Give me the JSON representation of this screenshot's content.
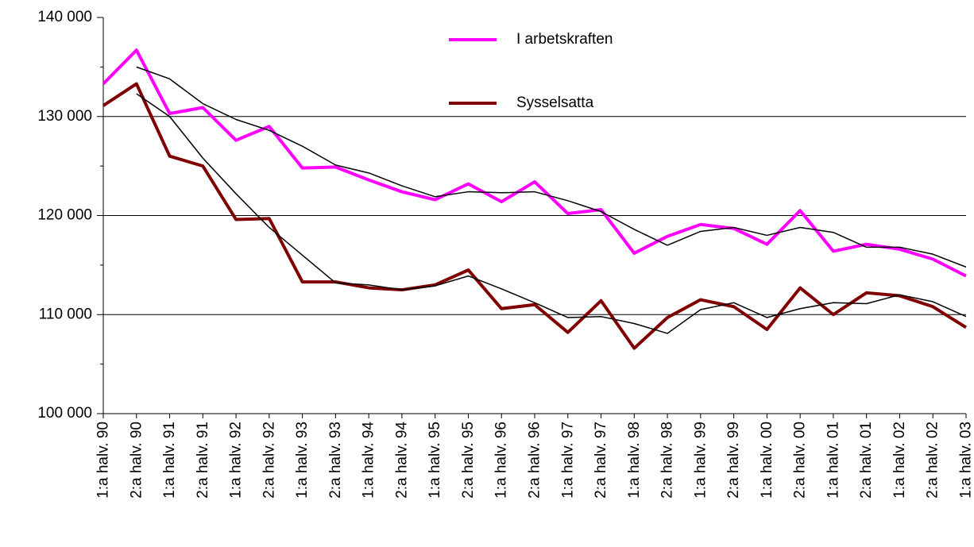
{
  "chart_data": {
    "type": "line",
    "categories": [
      "1:a halv. 90",
      "2:a halv. 90",
      "1:a halv. 91",
      "2:a halv. 91",
      "1:a halv. 92",
      "2:a halv. 92",
      "1:a halv. 93",
      "2:a halv. 93",
      "1:a halv. 94",
      "2:a halv. 94",
      "1:a halv. 95",
      "2:a halv. 95",
      "1:a halv. 96",
      "2:a halv. 96",
      "1:a halv. 97",
      "2:a halv. 97",
      "1:a halv. 98",
      "2:a halv. 98",
      "1:a halv. 99",
      "2:a halv. 99",
      "1:a halv. 00",
      "2:a halv. 00",
      "1:a halv. 01",
      "2:a halv. 01",
      "1:a halv. 02",
      "2:a halv. 02",
      "1:a halv. 03"
    ],
    "series": [
      {
        "name": "I arbetskraften",
        "color": "#ff00ff",
        "values": [
          133300,
          136700,
          130300,
          130900,
          127600,
          129000,
          124800,
          124900,
          123600,
          122400,
          121600,
          123200,
          121400,
          123400,
          120200,
          120600,
          116200,
          117900,
          119100,
          118700,
          117100,
          120500,
          116400,
          117100,
          116600,
          115600,
          113900
        ]
      },
      {
        "name": "Sysselsatta",
        "color": "#800000",
        "values": [
          131100,
          133300,
          126000,
          125000,
          119600,
          119700,
          113300,
          113300,
          112700,
          112500,
          113000,
          114500,
          110600,
          111000,
          108200,
          111400,
          106600,
          109700,
          111500,
          110800,
          108500,
          112700,
          110000,
          112200,
          111900,
          110800,
          108700
        ]
      },
      {
        "color": "#000000",
        "values": [
          null,
          135000,
          133800,
          131300,
          129700,
          128600,
          127000,
          125100,
          124300,
          123000,
          121900,
          122400,
          122300,
          122400,
          121500,
          120400,
          118600,
          117000,
          118400,
          118800,
          118000,
          118800,
          118300,
          116800,
          116800,
          116100,
          114800
        ]
      },
      {
        "color": "#000000",
        "values": [
          null,
          132300,
          130000,
          125800,
          122200,
          118800,
          116000,
          113200,
          113000,
          112500,
          112900,
          113900,
          112600,
          111200,
          109700,
          109800,
          109100,
          108100,
          110500,
          111200,
          109700,
          110600,
          111200,
          111100,
          112000,
          111300,
          109800
        ]
      }
    ],
    "ylim": [
      100000,
      140000
    ],
    "yticks": [
      {
        "value": 100000,
        "label": "100 000"
      },
      {
        "value": 110000,
        "label": "110 000"
      },
      {
        "value": 120000,
        "label": "120 000"
      },
      {
        "value": 130000,
        "label": "130 000"
      },
      {
        "value": 140000,
        "label": "140 000"
      }
    ],
    "yminorticks": [
      105000,
      115000,
      125000,
      135000
    ],
    "grid": true
  }
}
